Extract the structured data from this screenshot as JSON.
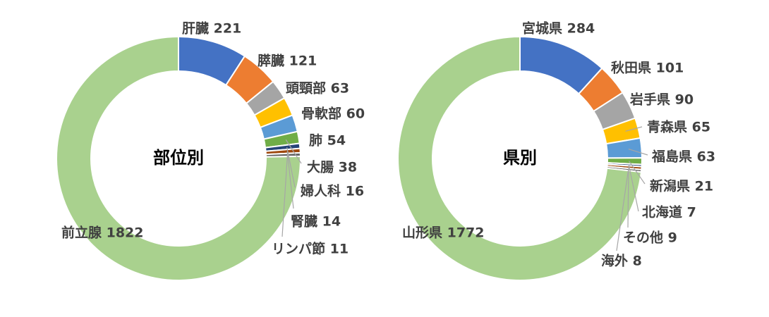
{
  "chart_data": [
    {
      "type": "donut",
      "title": "部位別",
      "categories": [
        "肝臓",
        "膵臓",
        "頭頸部",
        "骨軟部",
        "肺",
        "大腸",
        "婦人科",
        "腎臓",
        "リンパ節",
        "前立腺"
      ],
      "values": [
        221,
        121,
        63,
        60,
        54,
        38,
        16,
        14,
        11,
        1822
      ],
      "colors": [
        "#4472C4",
        "#ED7D31",
        "#A5A5A5",
        "#FFC000",
        "#5B9BD5",
        "#70AD47",
        "#264478",
        "#9E480E",
        "#636363",
        "#A9D18E"
      ],
      "labels": [
        "肝臓 221",
        "膵臓 121",
        "頭頸部 63",
        "骨軟部 60",
        "肺 54",
        "大腸 38",
        "婦人科 16",
        "腎臓 14",
        "リンパ節 11",
        "前立腺 1822"
      ]
    },
    {
      "type": "donut",
      "title": "県別",
      "categories": [
        "宮城県",
        "秋田県",
        "岩手県",
        "青森県",
        "福島県",
        "新潟県",
        "北海道",
        "その他",
        "海外",
        "山形県"
      ],
      "values": [
        284,
        101,
        90,
        65,
        63,
        21,
        7,
        9,
        8,
        1772
      ],
      "colors": [
        "#4472C4",
        "#ED7D31",
        "#A5A5A5",
        "#FFC000",
        "#5B9BD5",
        "#70AD47",
        "#264478",
        "#9E480E",
        "#636363",
        "#A9D18E"
      ],
      "labels": [
        "宮城県 284",
        "秋田県 101",
        "岩手県 90",
        "青森県 65",
        "福島県 63",
        "新潟県 21",
        "北海道 7",
        "その他 9",
        "海外 8",
        "山形県 1772"
      ]
    }
  ]
}
